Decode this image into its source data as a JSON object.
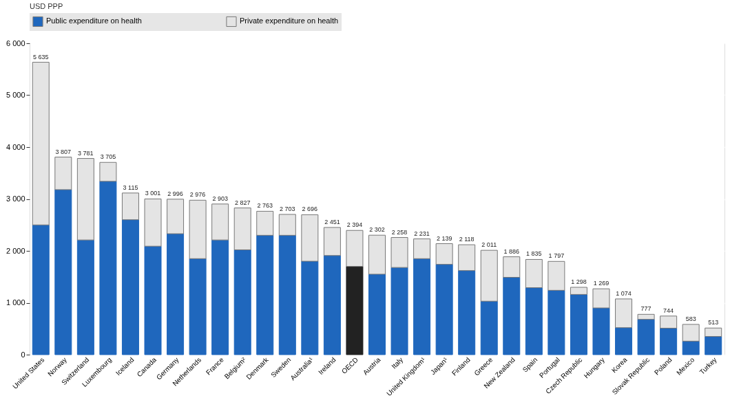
{
  "chart_data": {
    "type": "bar",
    "stacked": true,
    "ylabel": "USD PPP",
    "legend": "top",
    "grid": "y",
    "categories": [
      "United States",
      "Norway",
      "Switzerland",
      "Luxembourg",
      "Iceland",
      "Canada",
      "Germany",
      "Netherlands",
      "France",
      "Belgium²",
      "Denmark",
      "Sweden",
      "Australia¹",
      "Ireland",
      "OECD",
      "Austria",
      "Italy",
      "United Kingdom¹",
      "Japan¹",
      "Finland",
      "Greece",
      "New Zealand",
      "Spain",
      "Portugal",
      "Czech Republic",
      "Hungary",
      "Korea",
      "Slovak Republic",
      "Poland",
      "Mexico",
      "Turkey"
    ],
    "series": [
      {
        "name": "Public expenditure on health",
        "color": "#1f67bd",
        "colors": [
          "#1f67bd",
          "#1f67bd",
          "#1f67bd",
          "#1f67bd",
          "#1f67bd",
          "#1f67bd",
          "#1f67bd",
          "#1f67bd",
          "#1f67bd",
          "#1f67bd",
          "#1f67bd",
          "#1f67bd",
          "#1f67bd",
          "#1f67bd",
          "#222222",
          "#1f67bd",
          "#1f67bd",
          "#1f67bd",
          "#1f67bd",
          "#1f67bd",
          "#1f67bd",
          "#1f67bd",
          "#1f67bd",
          "#1f67bd",
          "#1f67bd",
          "#1f67bd",
          "#1f67bd",
          "#1f67bd",
          "#1f67bd",
          "#1f67bd",
          "#1f67bd"
        ],
        "values": [
          2500,
          3180,
          2210,
          3340,
          2600,
          2090,
          2330,
          1850,
          2210,
          2020,
          2300,
          2300,
          1800,
          1910,
          1700,
          1550,
          1680,
          1850,
          1740,
          1620,
          1030,
          1490,
          1290,
          1240,
          1160,
          900,
          520,
          680,
          510,
          260,
          350
        ]
      },
      {
        "name": "Private expenditure on health",
        "color": "#e4e4e4",
        "values": [
          3135,
          627,
          1571,
          365,
          515,
          911,
          666,
          1126,
          693,
          807,
          463,
          403,
          896,
          541,
          694,
          752,
          578,
          381,
          399,
          498,
          981,
          396,
          545,
          557,
          138,
          369,
          554,
          97,
          234,
          323,
          163
        ]
      }
    ],
    "totals": [
      "5 635",
      "3 807",
      "3 781",
      "3 705",
      "3 115",
      "3 001",
      "2 996",
      "2 976",
      "2 903",
      "2 827",
      "2 763",
      "2 703",
      "2 696",
      "2 451",
      "2 394",
      "2 302",
      "2 258",
      "2 231",
      "2 139",
      "2 118",
      "2 011",
      "1 886",
      "1 835",
      "1 797",
      "1 298",
      "1 269",
      "1 074",
      "777",
      "744",
      "583",
      "513"
    ],
    "ylim": [
      0,
      6000
    ],
    "yticks": [
      {
        "value": 0,
        "label": "0"
      },
      {
        "value": 1000,
        "label": "1 000"
      },
      {
        "value": 2000,
        "label": "2 000"
      },
      {
        "value": 3000,
        "label": "3 000"
      },
      {
        "value": 4000,
        "label": "4 000"
      },
      {
        "value": 5000,
        "label": "5 000"
      },
      {
        "value": 6000,
        "label": "6 000"
      }
    ]
  }
}
